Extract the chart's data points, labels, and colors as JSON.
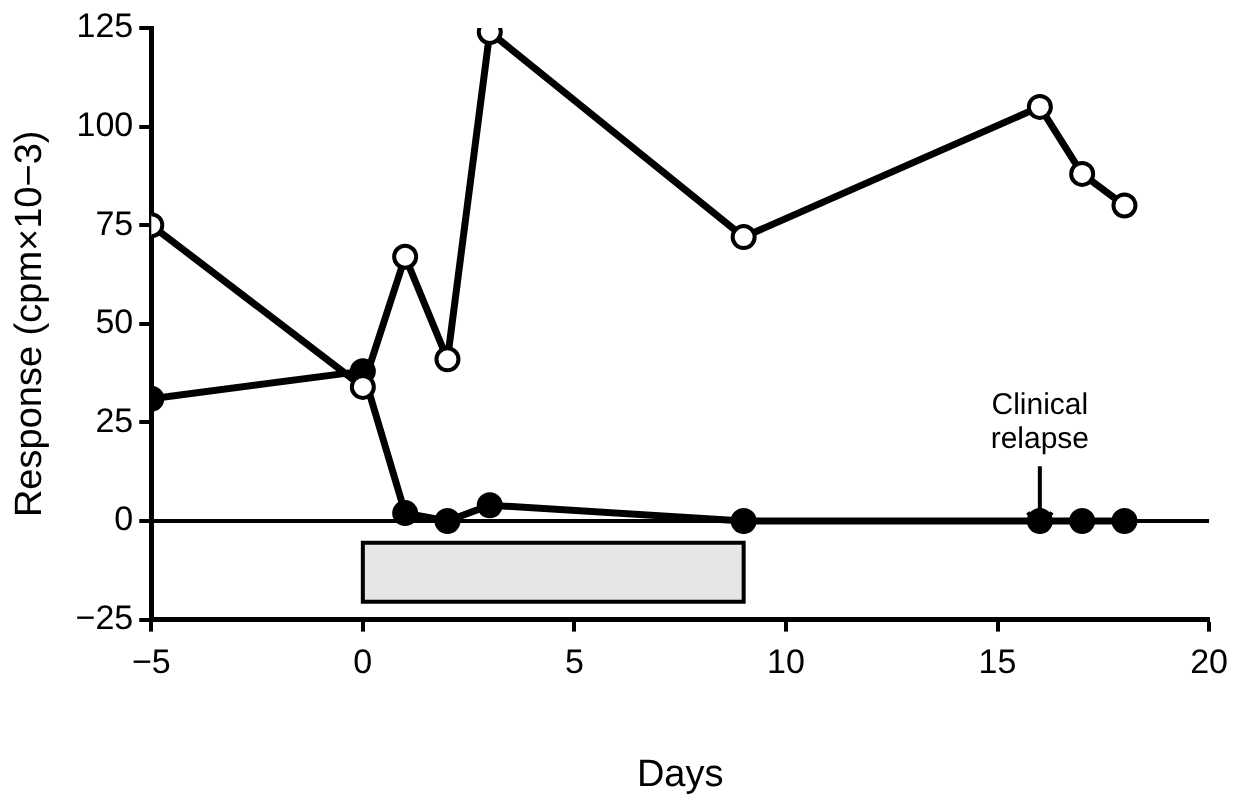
{
  "chart_data": {
    "type": "line",
    "xlabel": "Days",
    "ylabel": "Response (cpm×10−3)",
    "xlim": [
      -5,
      20
    ],
    "xticks": [
      {
        "value": -5,
        "label": "−5"
      },
      0,
      5,
      10,
      15,
      20
    ],
    "ylim": [
      -25,
      125
    ],
    "yticks": [
      {
        "value": -25,
        "label": "−25"
      },
      0,
      25,
      50,
      75,
      100,
      125
    ],
    "x": [
      -5,
      0,
      1,
      2,
      3,
      9,
      16,
      17,
      18
    ],
    "series": [
      {
        "color": "#000000",
        "values": [
          75,
          34,
          67,
          41,
          124,
          72,
          105,
          88,
          80
        ]
      },
      {
        "color": "#000000",
        "values": [
          31,
          38,
          2,
          0,
          4,
          0,
          0,
          0,
          0
        ]
      }
    ],
    "ref_lines": [
      {
        "axis": "y",
        "value": 0,
        "color": "#000000"
      }
    ],
    "bands": [
      {
        "axis": "x",
        "from": 0,
        "to": 9,
        "color": "#e6e6e6"
      }
    ],
    "annotations": [
      "Clinical\nrelapse"
    ],
    "marker": "circle",
    "line_style": "solid",
    "grid": false,
    "legend": false
  }
}
